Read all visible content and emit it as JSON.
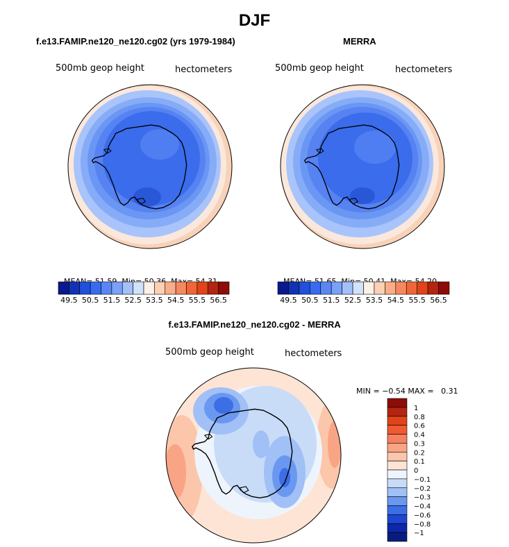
{
  "figure": {
    "title": "DJF"
  },
  "chart_data": [
    {
      "type": "heatmap",
      "projection": "south-polar-stereographic",
      "title": "f.e13.FAMIP.ne120_ne120.cg02 (yrs 1979-1984)",
      "left_label": "500mb geop height",
      "right_label": "hectometers",
      "stats": {
        "mean": "51.59",
        "min": "50.36",
        "max": "54.31"
      },
      "stats_labels": {
        "mean": "MEAN=",
        "min": "Min=",
        "max": "Max="
      },
      "colorbar": {
        "orientation": "horizontal",
        "tick_labels": [
          "49.5",
          "50.5",
          "51.5",
          "52.5",
          "53.5",
          "54.5",
          "55.5",
          "56.5"
        ],
        "colors": [
          "#0a1a8c",
          "#1232b4",
          "#2050dc",
          "#3a6af0",
          "#5a86f5",
          "#7aa0f8",
          "#a4c0fa",
          "#d2e2fa",
          "#fdf0e6",
          "#fcd0b4",
          "#f9ae88",
          "#f68860",
          "#f06638",
          "#e04418",
          "#b42410",
          "#8c0c08"
        ]
      }
    },
    {
      "type": "heatmap",
      "projection": "south-polar-stereographic",
      "title": "MERRA",
      "left_label": "500mb geop height",
      "right_label": "hectometers",
      "stats": {
        "mean": "51.65",
        "min": "50.41",
        "max": "54.20"
      },
      "stats_labels": {
        "mean": "MEAN=",
        "min": "Min=",
        "max": "Max="
      },
      "colorbar": {
        "orientation": "horizontal",
        "tick_labels": [
          "49.5",
          "50.5",
          "51.5",
          "52.5",
          "53.5",
          "54.5",
          "55.5",
          "56.5"
        ],
        "colors": [
          "#0a1a8c",
          "#1232b4",
          "#2050dc",
          "#3a6af0",
          "#5a86f5",
          "#7aa0f8",
          "#a4c0fa",
          "#d2e2fa",
          "#fdf0e6",
          "#fcd0b4",
          "#f9ae88",
          "#f68860",
          "#f06638",
          "#e04418",
          "#b42410",
          "#8c0c08"
        ]
      }
    },
    {
      "type": "heatmap",
      "projection": "south-polar-stereographic",
      "title": "f.e13.FAMIP.ne120_ne120.cg02 - MERRA",
      "left_label": "500mb geop height",
      "right_label": "hectometers",
      "stats": {
        "min": "−0.54",
        "max": "0.31"
      },
      "stats_labels": {
        "min": "MIN =",
        "max": "MAX ="
      },
      "colorbar": {
        "orientation": "vertical",
        "tick_labels": [
          "1",
          "0.8",
          "0.6",
          "0.4",
          "0.3",
          "0.2",
          "0.1",
          "0",
          "−0.1",
          "−0.2",
          "−0.3",
          "−0.4",
          "−0.6",
          "−0.8",
          "−1"
        ],
        "colors": [
          "#8c0c08",
          "#b42410",
          "#e04418",
          "#f05a30",
          "#f68060",
          "#f9a484",
          "#fbc6aa",
          "#fde4d4",
          "#eef4fc",
          "#c8dcf8",
          "#a0c0f6",
          "#6a98f0",
          "#3c6ee6",
          "#1e46d2",
          "#0c28a8",
          "#081c80"
        ]
      }
    }
  ]
}
